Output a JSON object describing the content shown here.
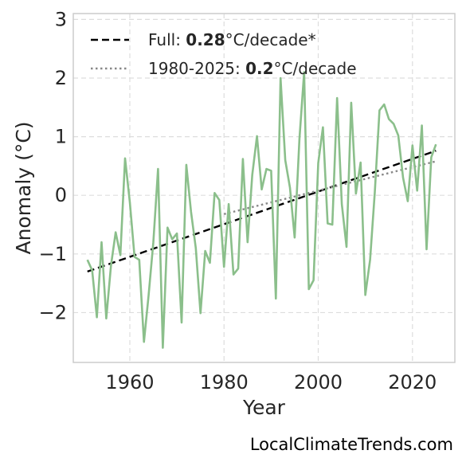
{
  "chart_data": {
    "type": "line",
    "xlabel": "Year",
    "ylabel": "Anomaly (°C)",
    "xlim": [
      1948,
      2029
    ],
    "ylim": [
      -2.85,
      3.1
    ],
    "x_ticks": [
      1960,
      1980,
      2000,
      2020
    ],
    "y_ticks": [
      -2,
      -1,
      0,
      1,
      2,
      3
    ],
    "grid": true,
    "legend_position": "top-left",
    "series": [
      {
        "style": "solid",
        "color": "#8bbf8b",
        "x": [
          1951,
          1952,
          1953,
          1954,
          1955,
          1956,
          1957,
          1958,
          1959,
          1960,
          1961,
          1962,
          1963,
          1964,
          1965,
          1966,
          1967,
          1968,
          1969,
          1970,
          1971,
          1972,
          1973,
          1974,
          1975,
          1976,
          1977,
          1978,
          1979,
          1980,
          1981,
          1982,
          1983,
          1984,
          1985,
          1986,
          1987,
          1988,
          1989,
          1990,
          1991,
          1992,
          1993,
          1994,
          1995,
          1996,
          1997,
          1998,
          1999,
          2000,
          2001,
          2002,
          2003,
          2004,
          2005,
          2006,
          2007,
          2008,
          2009,
          2010,
          2011,
          2012,
          2013,
          2014,
          2015,
          2016,
          2017,
          2018,
          2019,
          2020,
          2021,
          2022,
          2023,
          2024,
          2025
        ],
        "y": [
          -1.1,
          -1.28,
          -2.08,
          -0.8,
          -2.1,
          -1.2,
          -0.63,
          -1.02,
          0.63,
          -0.12,
          -1.05,
          -1.1,
          -2.5,
          -1.7,
          -0.8,
          0.45,
          -2.6,
          -0.55,
          -0.75,
          -0.65,
          -2.17,
          0.52,
          -0.28,
          -0.9,
          -2.01,
          -0.95,
          -1.15,
          0.04,
          -0.08,
          -1.22,
          -0.15,
          -1.35,
          -1.25,
          0.62,
          -0.8,
          0.35,
          1.01,
          0.1,
          0.45,
          0.42,
          -1.76,
          2.0,
          0.6,
          0.13,
          -0.72,
          0.96,
          2.1,
          -1.6,
          -1.45,
          0.55,
          1.16,
          -0.48,
          -0.5,
          1.66,
          -0.15,
          -0.88,
          1.58,
          0.03,
          0.56,
          -1.7,
          -1.1,
          0.05,
          1.45,
          1.55,
          1.3,
          1.22,
          1.02,
          0.3,
          -0.1,
          0.85,
          0.08,
          1.19,
          -0.92,
          0.65,
          0.87
        ]
      }
    ],
    "trends": [
      {
        "label_prefix": "Full: ",
        "label_value": "0.28",
        "label_suffix": "°C/decade*",
        "style": "dashed",
        "color": "#000000",
        "x": [
          1951,
          2025
        ],
        "y": [
          -1.3,
          0.76
        ]
      },
      {
        "label_prefix": "1980-2025: ",
        "label_value": "0.2",
        "label_suffix": "°C/decade",
        "style": "dotted",
        "color": "#888888",
        "x": [
          1980,
          2025
        ],
        "y": [
          -0.32,
          0.58
        ]
      }
    ]
  },
  "source_label": "LocalClimateTrends.com"
}
